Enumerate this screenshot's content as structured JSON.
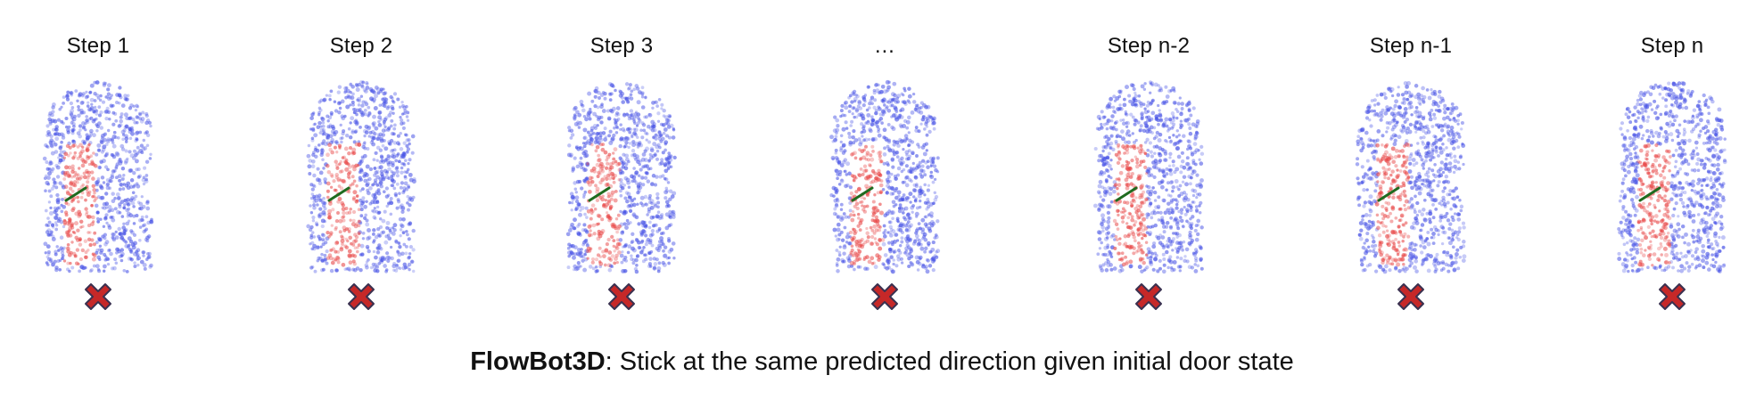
{
  "steps": [
    {
      "label": "Step 1",
      "center": 110
    },
    {
      "label": "Step 2",
      "center": 405
    },
    {
      "label": "Step 3",
      "center": 697
    },
    {
      "label": "…",
      "center": 992
    },
    {
      "label": "Step n-2",
      "center": 1288
    },
    {
      "label": "Step n-1",
      "center": 1582
    },
    {
      "label": "Step n",
      "center": 1875
    }
  ],
  "caption": {
    "method": "FlowBot3D",
    "text": ": Stick at the same predicted direction given initial door state"
  },
  "colors": {
    "door_points": "#4a55e6",
    "handle_points": "#e84848",
    "flow_arrow": "#1f6b1f",
    "fail_cross": "#c62828",
    "cross_outline": "#3a3150"
  },
  "icons": {
    "fail": "x-mark-icon"
  }
}
